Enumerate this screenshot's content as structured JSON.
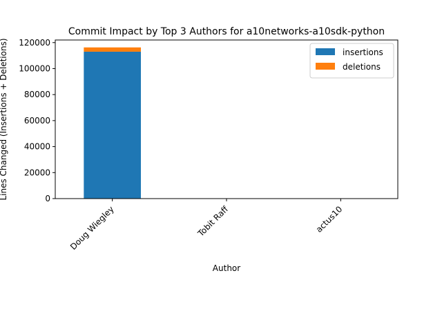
{
  "chart_data": {
    "type": "bar",
    "stacked": true,
    "title": "Commit Impact by Top 3 Authors for a10networks-a10sdk-python",
    "xlabel": "Author",
    "ylabel": "Lines Changed (Insertions + Deletions)",
    "categories": [
      "Doug Wiegley",
      "Tobit Raff",
      "actus10"
    ],
    "series": [
      {
        "name": "insertions",
        "color": "#1f77b4",
        "values": [
          113000,
          0,
          0
        ]
      },
      {
        "name": "deletions",
        "color": "#ff7f0e",
        "values": [
          3300,
          0,
          0
        ]
      }
    ],
    "ylim": [
      0,
      122000
    ],
    "yticks": [
      0,
      20000,
      40000,
      60000,
      80000,
      100000,
      120000
    ],
    "grid": false,
    "legend_position": "top-right"
  }
}
